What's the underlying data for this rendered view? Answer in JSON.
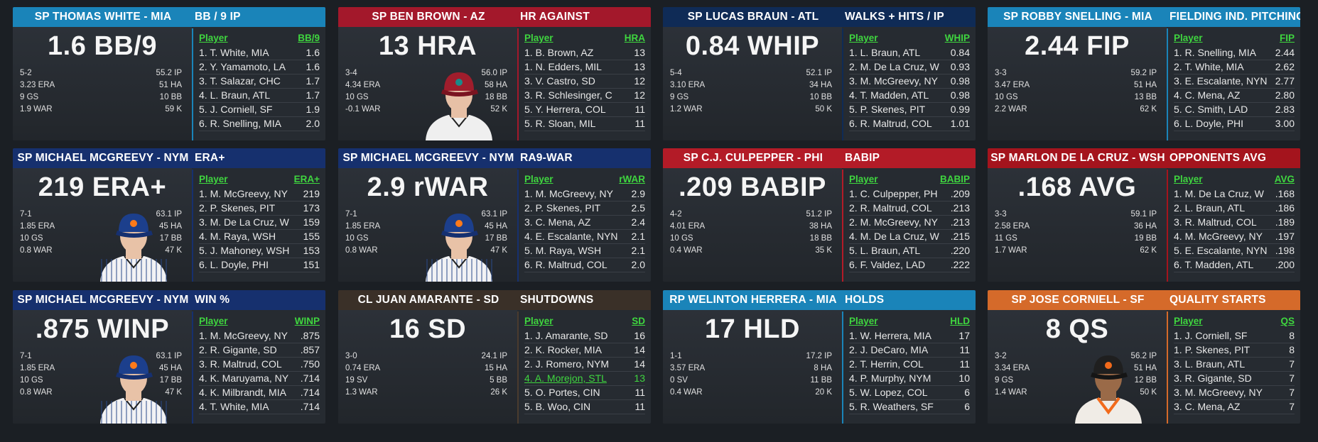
{
  "colors": {
    "MIA": "#1a84b9",
    "AZ": "#a3182b",
    "ATL": "#0f2b56",
    "NYM": "#16306e",
    "PHI": "#b31b27",
    "WSH": "#a4141d",
    "SD": "#3a3028",
    "SF": "#d56a2a",
    "divider_MIA": "#1a84b9",
    "divider_AZ": "#a3182b",
    "divider_ATL": "#0f2b56",
    "divider_NYM": "#16306e",
    "divider_PHI": "#b31b27",
    "divider_WSH": "#a4141d",
    "divider_SD": "#4a3b2e",
    "divider_SF": "#d56a2a"
  },
  "cards": [
    {
      "team": "MIA",
      "player": "SP THOMAS WHITE - MIA",
      "stat_title": "BB / 9 IP",
      "big": "1.6 BB/9",
      "col_player": "Player",
      "col_stat": "BB/9",
      "record": [
        "5-2",
        "3.23 ERA",
        "9 GS",
        "1.9 WAR"
      ],
      "record_r": [
        "55.2 IP",
        "51 HA",
        "10 BB",
        "59 K"
      ],
      "avatar": null,
      "rows": [
        {
          "n": "1. T. White, MIA",
          "v": "1.6"
        },
        {
          "n": "2. Y. Yamamoto, LA",
          "v": "1.6"
        },
        {
          "n": "3. T. Salazar, CHC",
          "v": "1.7"
        },
        {
          "n": "4. L. Braun, ATL",
          "v": "1.7"
        },
        {
          "n": "5. J. Corniell, SF",
          "v": "1.9"
        },
        {
          "n": "6. R. Snelling, MIA",
          "v": "2.0"
        }
      ]
    },
    {
      "team": "AZ",
      "player": "SP BEN BROWN - AZ",
      "stat_title": "HR AGAINST",
      "big": "13 HRA",
      "col_player": "Player",
      "col_stat": "HRA",
      "record": [
        "3-4",
        "4.34 ERA",
        "10 GS",
        "-0.1 WAR"
      ],
      "record_r": [
        "56.0 IP",
        "58 HA",
        "18 BB",
        "52 K"
      ],
      "avatar": "az",
      "rows": [
        {
          "n": "1. B. Brown, AZ",
          "v": "13"
        },
        {
          "n": "1. N. Edders, MIL",
          "v": "13"
        },
        {
          "n": "3. V. Castro, SD",
          "v": "12"
        },
        {
          "n": "3. R. Schlesinger, C",
          "v": "12"
        },
        {
          "n": "5. Y. Herrera, COL",
          "v": "11"
        },
        {
          "n": "5. R. Sloan, MIL",
          "v": "11"
        }
      ]
    },
    {
      "team": "ATL",
      "player": "SP LUCAS BRAUN - ATL",
      "stat_title": "WALKS + HITS / IP",
      "big": "0.84 WHIP",
      "col_player": "Player",
      "col_stat": "WHIP",
      "record": [
        "5-4",
        "3.10 ERA",
        "9 GS",
        "1.2 WAR"
      ],
      "record_r": [
        "52.1 IP",
        "34 HA",
        "10 BB",
        "50 K"
      ],
      "avatar": null,
      "rows": [
        {
          "n": "1. L. Braun, ATL",
          "v": "0.84"
        },
        {
          "n": "2. M. De La Cruz, W",
          "v": "0.93"
        },
        {
          "n": "3. M. McGreevy, NY",
          "v": "0.98"
        },
        {
          "n": "4. T. Madden, ATL",
          "v": "0.98"
        },
        {
          "n": "5. P. Skenes, PIT",
          "v": "0.99"
        },
        {
          "n": "6. R. Maltrud, COL",
          "v": "1.01"
        }
      ]
    },
    {
      "team": "MIA",
      "player": "SP ROBBY SNELLING - MIA",
      "stat_title": "FIELDING IND. PITCHING",
      "big": "2.44 FIP",
      "col_player": "Player",
      "col_stat": "FIP",
      "record": [
        "3-3",
        "3.47 ERA",
        "10 GS",
        "2.2 WAR"
      ],
      "record_r": [
        "59.2 IP",
        "51 HA",
        "13 BB",
        "62 K"
      ],
      "avatar": null,
      "rows": [
        {
          "n": "1. R. Snelling, MIA",
          "v": "2.44"
        },
        {
          "n": "2. T. White, MIA",
          "v": "2.62"
        },
        {
          "n": "3. E. Escalante, NYN",
          "v": "2.77"
        },
        {
          "n": "4. C. Mena, AZ",
          "v": "2.80"
        },
        {
          "n": "5. C. Smith, LAD",
          "v": "2.83"
        },
        {
          "n": "6. L. Doyle, PHI",
          "v": "3.00"
        }
      ]
    },
    {
      "team": "NYM",
      "player": "SP MICHAEL MCGREEVY - NYM",
      "stat_title": "ERA+",
      "big": "219 ERA+",
      "col_player": "Player",
      "col_stat": "ERA+",
      "record": [
        "7-1",
        "1.85 ERA",
        "10 GS",
        "0.8 WAR"
      ],
      "record_r": [
        "63.1 IP",
        "45 HA",
        "17 BB",
        "47 K"
      ],
      "avatar": "nym",
      "rows": [
        {
          "n": "1. M. McGreevy, NY",
          "v": "219"
        },
        {
          "n": "2. P. Skenes, PIT",
          "v": "173"
        },
        {
          "n": "3. M. De La Cruz, W",
          "v": "159"
        },
        {
          "n": "4. M. Raya, WSH",
          "v": "155"
        },
        {
          "n": "5. J. Mahoney, WSH",
          "v": "153"
        },
        {
          "n": "6. L. Doyle, PHI",
          "v": "151"
        }
      ]
    },
    {
      "team": "NYM",
      "player": "SP MICHAEL MCGREEVY - NYM",
      "stat_title": "RA9-WAR",
      "big": "2.9 rWAR",
      "col_player": "Player",
      "col_stat": "rWAR",
      "record": [
        "7-1",
        "1.85 ERA",
        "10 GS",
        "0.8 WAR"
      ],
      "record_r": [
        "63.1 IP",
        "45 HA",
        "17 BB",
        "47 K"
      ],
      "avatar": "nym",
      "rows": [
        {
          "n": "1. M. McGreevy, NY",
          "v": "2.9"
        },
        {
          "n": "2. P. Skenes, PIT",
          "v": "2.5"
        },
        {
          "n": "3. C. Mena, AZ",
          "v": "2.4"
        },
        {
          "n": "4. E. Escalante, NYN",
          "v": "2.1"
        },
        {
          "n": "5. M. Raya, WSH",
          "v": "2.1"
        },
        {
          "n": "6. R. Maltrud, COL",
          "v": "2.0"
        }
      ]
    },
    {
      "team": "PHI",
      "player": "SP C.J. CULPEPPER - PHI",
      "stat_title": "BABIP",
      "big": ".209 BABIP",
      "col_player": "Player",
      "col_stat": "BABIP",
      "record": [
        "4-2",
        "4.01 ERA",
        "10 GS",
        "0.4 WAR"
      ],
      "record_r": [
        "51.2 IP",
        "38 HA",
        "18 BB",
        "35 K"
      ],
      "avatar": null,
      "rows": [
        {
          "n": "1. C. Culpepper, PH",
          "v": ".209"
        },
        {
          "n": "2. R. Maltrud, COL",
          "v": ".213"
        },
        {
          "n": "2. M. McGreevy, NY",
          "v": ".213"
        },
        {
          "n": "4. M. De La Cruz, W",
          "v": ".215"
        },
        {
          "n": "5. L. Braun, ATL",
          "v": ".220"
        },
        {
          "n": "6. F. Valdez, LAD",
          "v": ".222"
        }
      ]
    },
    {
      "team": "WSH",
      "player": "SP MARLON DE LA CRUZ - WSH",
      "stat_title": "OPPONENTS AVG",
      "big": ".168 AVG",
      "col_player": "Player",
      "col_stat": "AVG",
      "record": [
        "3-3",
        "2.58 ERA",
        "11 GS",
        "1.7 WAR"
      ],
      "record_r": [
        "59.1 IP",
        "36 HA",
        "19 BB",
        "62 K"
      ],
      "avatar": null,
      "rows": [
        {
          "n": "1. M. De La Cruz, W",
          "v": ".168"
        },
        {
          "n": "2. L. Braun, ATL",
          "v": ".186"
        },
        {
          "n": "3. R. Maltrud, COL",
          "v": ".189"
        },
        {
          "n": "4. M. McGreevy, NY",
          "v": ".197"
        },
        {
          "n": "5. E. Escalante, NYN",
          "v": ".198"
        },
        {
          "n": "6. T. Madden, ATL",
          "v": ".200"
        }
      ]
    },
    {
      "team": "NYM",
      "player": "SP MICHAEL MCGREEVY - NYM",
      "stat_title": "WIN %",
      "big": ".875 WINP",
      "col_player": "Player",
      "col_stat": "WINP",
      "record": [
        "7-1",
        "1.85 ERA",
        "10 GS",
        "0.8 WAR"
      ],
      "record_r": [
        "63.1 IP",
        "45 HA",
        "17 BB",
        "47 K"
      ],
      "avatar": "nym",
      "rows": [
        {
          "n": "1. M. McGreevy, NY",
          "v": ".875"
        },
        {
          "n": "2. R. Gigante, SD",
          "v": ".857"
        },
        {
          "n": "3. R. Maltrud, COL",
          "v": ".750"
        },
        {
          "n": "4. K. Maruyama, NY",
          "v": ".714"
        },
        {
          "n": "4. K. Milbrandt, MIA",
          "v": ".714"
        },
        {
          "n": "4. T. White, MIA",
          "v": ".714"
        }
      ]
    },
    {
      "team": "SD",
      "player": "CL JUAN AMARANTE - SD",
      "stat_title": "SHUTDOWNS",
      "big": "16 SD",
      "col_player": "Player",
      "col_stat": "SD",
      "record": [
        "3-0",
        "0.74 ERA",
        "19 SV",
        "1.3 WAR"
      ],
      "record_r": [
        "24.1 IP",
        "15 HA",
        "5 BB",
        "26 K"
      ],
      "avatar": null,
      "rows": [
        {
          "n": "1. J. Amarante, SD",
          "v": "16"
        },
        {
          "n": "2. K. Rocker, MIA",
          "v": "14"
        },
        {
          "n": "2. J. Romero, NYM",
          "v": "14"
        },
        {
          "n": "4. A. Morejon, STL",
          "v": "13",
          "hl": true
        },
        {
          "n": "5. O. Portes, CIN",
          "v": "11"
        },
        {
          "n": "5. B. Woo, CIN",
          "v": "11"
        }
      ]
    },
    {
      "team": "MIA",
      "player": "RP WELINTON HERRERA - MIA",
      "stat_title": "HOLDS",
      "big": "17 HLD",
      "col_player": "Player",
      "col_stat": "HLD",
      "record": [
        "1-1",
        "3.57 ERA",
        "0 SV",
        "0.4 WAR"
      ],
      "record_r": [
        "17.2 IP",
        "8 HA",
        "11 BB",
        "20 K"
      ],
      "avatar": null,
      "rows": [
        {
          "n": "1. W. Herrera, MIA",
          "v": "17"
        },
        {
          "n": "2. J. DeCaro, MIA",
          "v": "11"
        },
        {
          "n": "2. T. Herrin, COL",
          "v": "11"
        },
        {
          "n": "4. P. Murphy, NYM",
          "v": "10"
        },
        {
          "n": "5. W. Lopez, COL",
          "v": "6"
        },
        {
          "n": "5. R. Weathers, SF",
          "v": "6"
        }
      ]
    },
    {
      "team": "SF",
      "player": "SP JOSE CORNIELL - SF",
      "stat_title": "QUALITY STARTS",
      "big": "8 QS",
      "col_player": "Player",
      "col_stat": "QS",
      "record": [
        "3-2",
        "3.34 ERA",
        "9 GS",
        "1.4 WAR"
      ],
      "record_r": [
        "56.2 IP",
        "51 HA",
        "12 BB",
        "50 K"
      ],
      "avatar": "sf",
      "rows": [
        {
          "n": "1. J. Corniell, SF",
          "v": "8"
        },
        {
          "n": "1. P. Skenes, PIT",
          "v": "8"
        },
        {
          "n": "3. L. Braun, ATL",
          "v": "7"
        },
        {
          "n": "3. R. Gigante, SD",
          "v": "7"
        },
        {
          "n": "3. M. McGreevy, NY",
          "v": "7"
        },
        {
          "n": "3. C. Mena, AZ",
          "v": "7"
        }
      ]
    }
  ]
}
